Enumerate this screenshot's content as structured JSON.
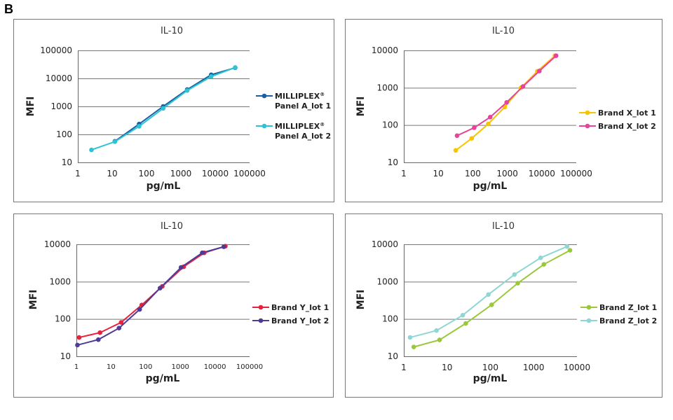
{
  "figure_label": "B",
  "chart_data": [
    {
      "type": "line",
      "title": "IL-10",
      "xlabel": "pg/mL",
      "ylabel": "MFI",
      "xscale": "log",
      "yscale": "log",
      "xlim": [
        1,
        100000
      ],
      "ylim": [
        10,
        100000
      ],
      "xticks": [
        "1",
        "10",
        "100",
        "1000",
        "10000",
        "100000"
      ],
      "yticks": [
        "10",
        "100",
        "1000",
        "10000",
        "100000"
      ],
      "grid": "horizontal",
      "legend": "right",
      "series": [
        {
          "name": "MILLIPLEX® Panel A_lot 1",
          "color": "#1b5fa3",
          "x": [
            12,
            61,
            305,
            1526,
            7630,
            38150
          ],
          "y": [
            57,
            235,
            1000,
            4000,
            13500,
            24000
          ]
        },
        {
          "name": "MILLIPLEX® Panel A_lot 2",
          "color": "#2cc3d5",
          "x": [
            2.5,
            12,
            61,
            305,
            1526,
            7630,
            38150
          ],
          "y": [
            28,
            55,
            195,
            850,
            3700,
            11700,
            24500
          ]
        }
      ]
    },
    {
      "type": "line",
      "title": "IL-10",
      "xlabel": "pg/mL",
      "ylabel": "MFI",
      "xscale": "log",
      "yscale": "log",
      "xlim": [
        1,
        100000
      ],
      "ylim": [
        10,
        10000
      ],
      "xticks": [
        "1",
        "10",
        "100",
        "1000",
        "10000",
        "100000"
      ],
      "yticks": [
        "10",
        "100",
        "1000",
        "10000"
      ],
      "grid": "horizontal",
      "legend": "right",
      "series": [
        {
          "name": "Brand X_lot 1",
          "color": "#f7c500",
          "x": [
            32,
            93,
            280,
            840,
            2500,
            7400,
            24000
          ],
          "y": [
            21,
            44,
            107,
            302,
            1000,
            2750,
            7200
          ]
        },
        {
          "name": "Brand X_lot 2",
          "color": "#e6449a",
          "x": [
            35,
            110,
            320,
            960,
            2850,
            8500,
            26000
          ],
          "y": [
            52,
            85,
            163,
            405,
            1080,
            2800,
            7200
          ]
        }
      ]
    },
    {
      "type": "line",
      "title": "IL-10",
      "xlabel": "pg/mL",
      "ylabel": "MFI",
      "xscale": "log",
      "yscale": "log",
      "xlim": [
        1,
        100000
      ],
      "ylim": [
        10,
        10000
      ],
      "xticks": [
        "1",
        "10",
        "100",
        "1000",
        "10000",
        "100000"
      ],
      "yticks": [
        "10",
        "100",
        "1000",
        "10000"
      ],
      "grid": "horizontal",
      "legend": "right",
      "series": [
        {
          "name": "Brand Y_lot 1",
          "color": "#e8213c",
          "x": [
            1.2,
            4.8,
            19.6,
            77,
            302,
            1250,
            4900,
            20000
          ],
          "y": [
            32,
            43,
            81,
            237,
            750,
            2500,
            5900,
            8900
          ]
        },
        {
          "name": "Brand Y_lot 2",
          "color": "#4f3a97",
          "x": [
            1.07,
            4.3,
            17,
            67,
            260,
            1050,
            4300,
            18000
          ],
          "y": [
            20,
            28,
            57,
            180,
            670,
            2400,
            5900,
            8600
          ]
        }
      ]
    },
    {
      "type": "line",
      "title": "IL-10",
      "xlabel": "pg/mL",
      "ylabel": "MFI",
      "xscale": "log",
      "yscale": "log",
      "xlim": [
        1,
        10000
      ],
      "ylim": [
        10,
        10000
      ],
      "xticks": [
        "1",
        "10",
        "100",
        "1000",
        "10000"
      ],
      "yticks": [
        "10",
        "100",
        "1000",
        "10000"
      ],
      "grid": "horizontal",
      "legend": "right",
      "series": [
        {
          "name": "Brand Z_lot 1",
          "color": "#9bc83a",
          "x": [
            1.7,
            6.7,
            27,
            107,
            430,
            1720,
            6900
          ],
          "y": [
            17.8,
            27.5,
            76,
            240,
            910,
            2900,
            6900
          ]
        },
        {
          "name": "Brand Z_lot 2",
          "color": "#8fd6d4",
          "x": [
            1.4,
            5.7,
            23,
            90,
            360,
            1450,
            5900
          ],
          "y": [
            32,
            49,
            126,
            450,
            1550,
            4350,
            8700
          ]
        }
      ]
    }
  ]
}
